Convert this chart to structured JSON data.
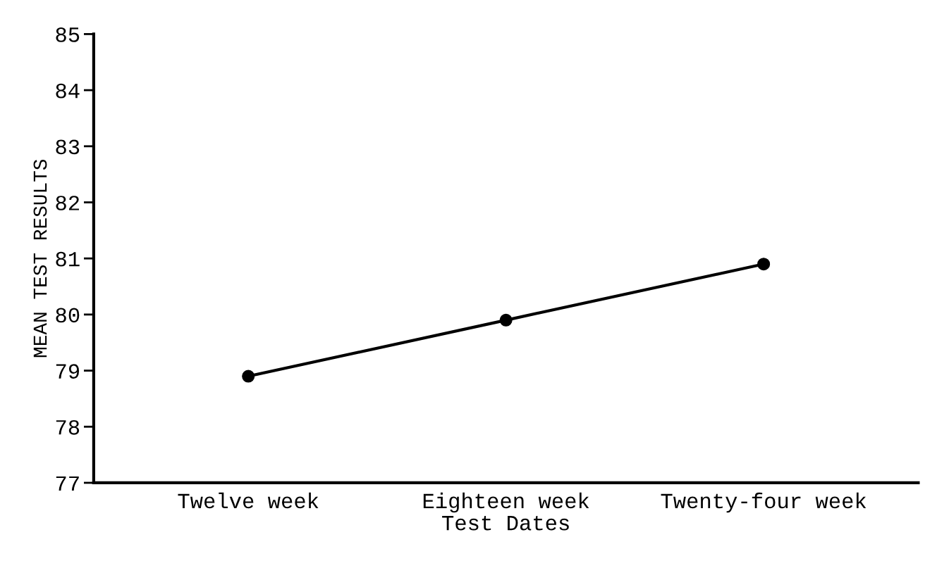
{
  "chart_data": {
    "type": "line",
    "xlabel": "Test Dates",
    "ylabel": "MEAN TEST RESULTS",
    "categories": [
      "Twelve week",
      "Eighteen week",
      "Twenty-four week"
    ],
    "series": [
      {
        "color": "#000000",
        "values": [
          78.9,
          79.9,
          80.9
        ]
      }
    ],
    "ylim": [
      77,
      85
    ],
    "yticks": [
      77,
      78,
      79,
      80,
      81,
      82,
      83,
      84,
      85
    ],
    "marker": "circle",
    "line_style": "solid",
    "grid": false
  }
}
